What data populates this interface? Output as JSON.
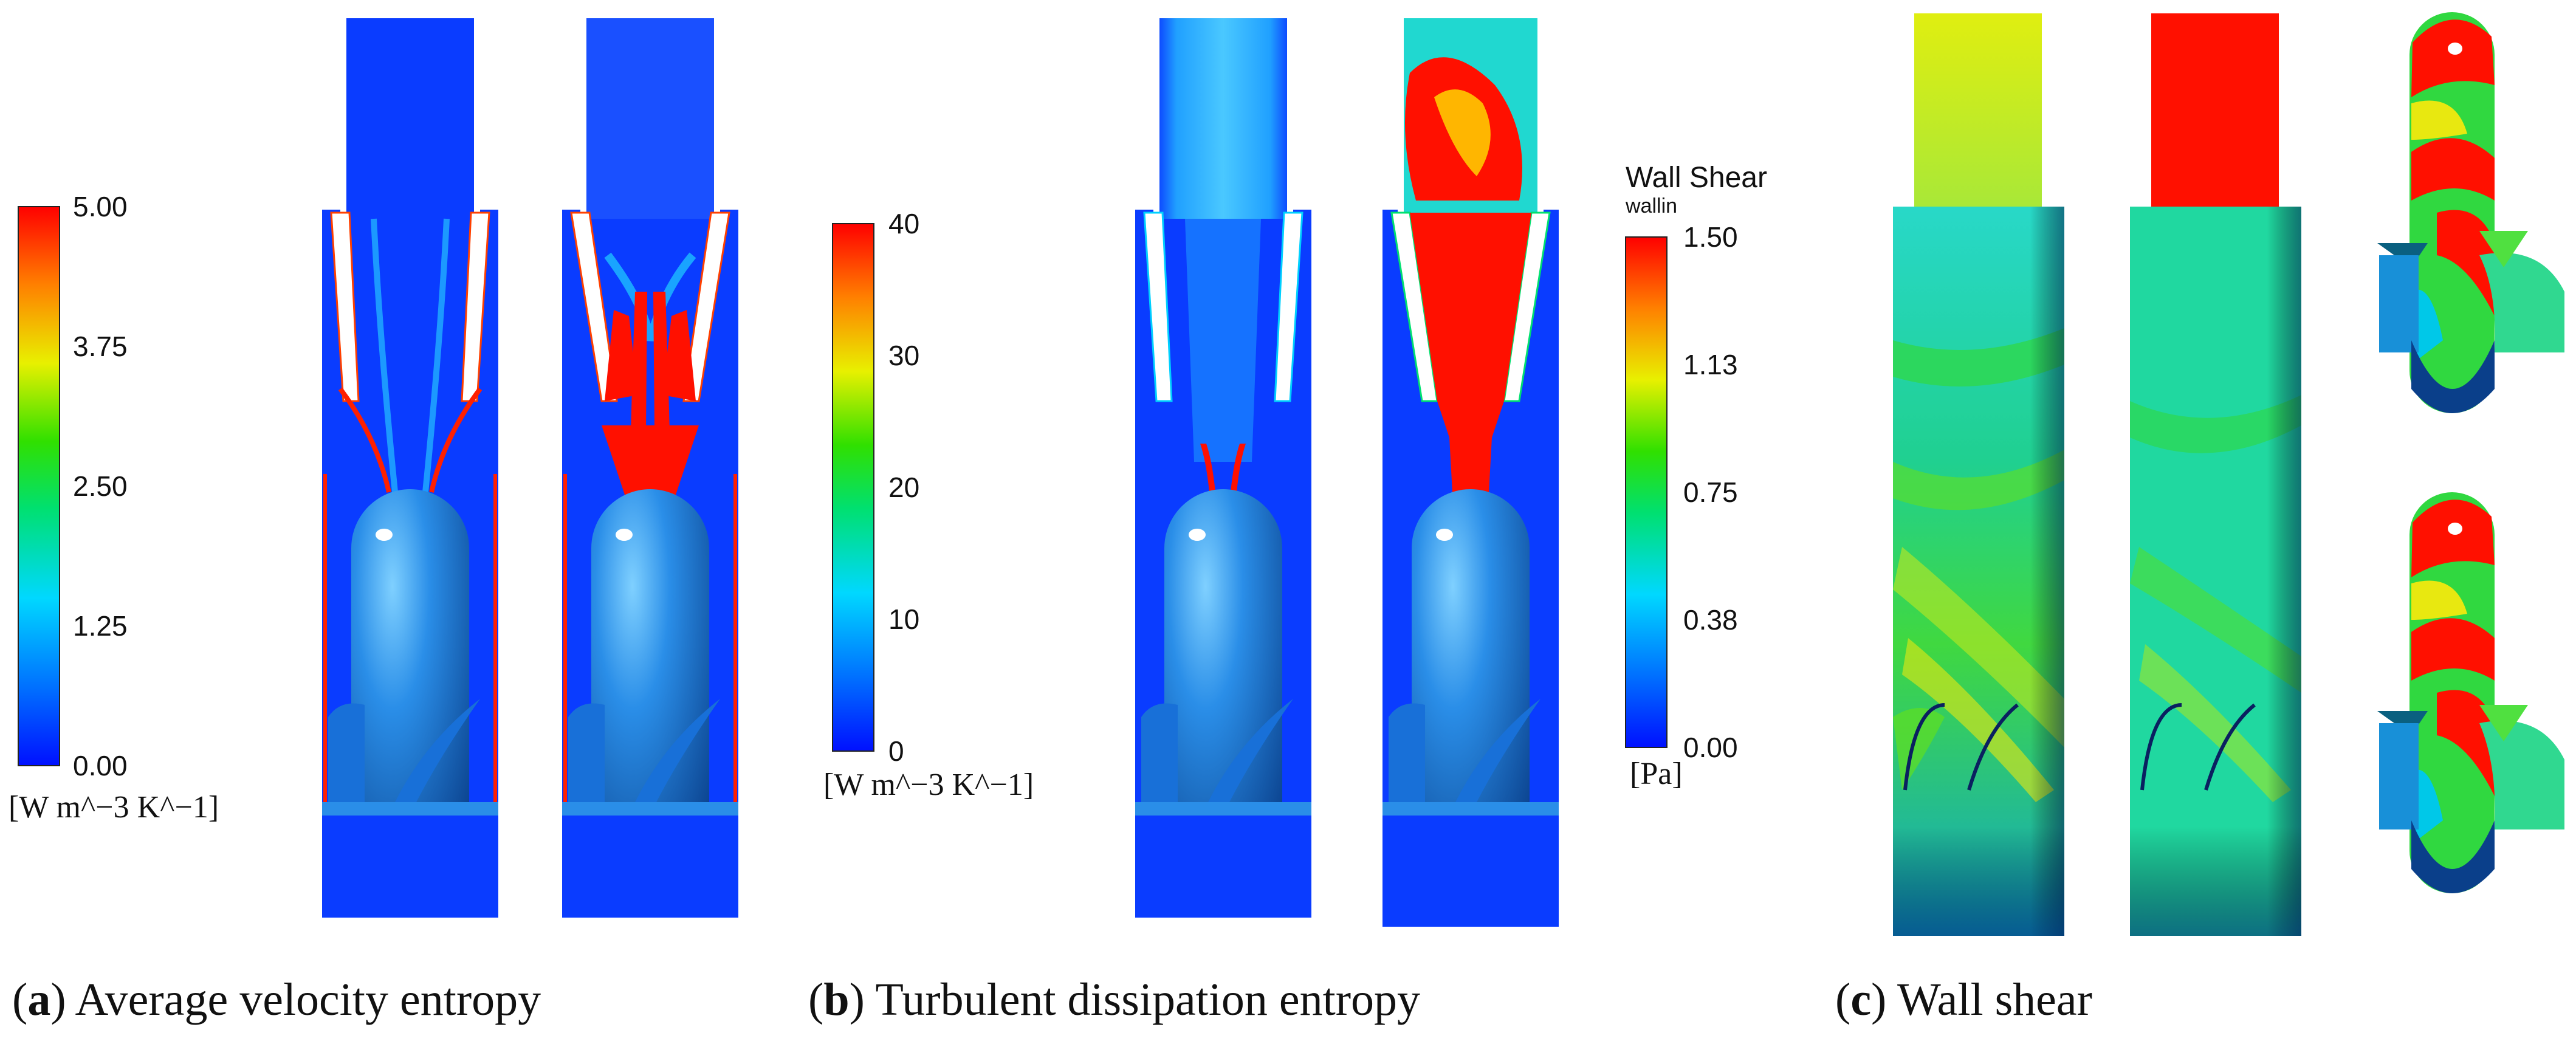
{
  "colors": {
    "scale": [
      "#0010ff",
      "#0070ff",
      "#00d8ff",
      "#00e070",
      "#30e000",
      "#e8f000",
      "#ff8000",
      "#ff0000"
    ],
    "background_blue": "#0a3cff",
    "body_blue": "#2a8ee8"
  },
  "panels": [
    {
      "letter": "a",
      "caption": "Average velocity entropy",
      "colorbar": {
        "title": "",
        "subtitle": "",
        "ticks": [
          "5.00",
          "3.75",
          "2.50",
          "1.25",
          "0.00"
        ],
        "unit": "[W m^−3 K^−1]"
      }
    },
    {
      "letter": "b",
      "caption": "Turbulent dissipation entropy",
      "colorbar": {
        "title": "",
        "subtitle": "",
        "ticks": [
          "40",
          "30",
          "20",
          "10",
          "0"
        ],
        "unit": "[W m^−3 K^−1]"
      }
    },
    {
      "letter": "c",
      "caption": "Wall shear",
      "colorbar": {
        "title": "Wall Shear",
        "subtitle": "wallin",
        "ticks": [
          "1.50",
          "1.13",
          "0.75",
          "0.38",
          "0.00"
        ],
        "unit": "[Pa]"
      }
    }
  ]
}
